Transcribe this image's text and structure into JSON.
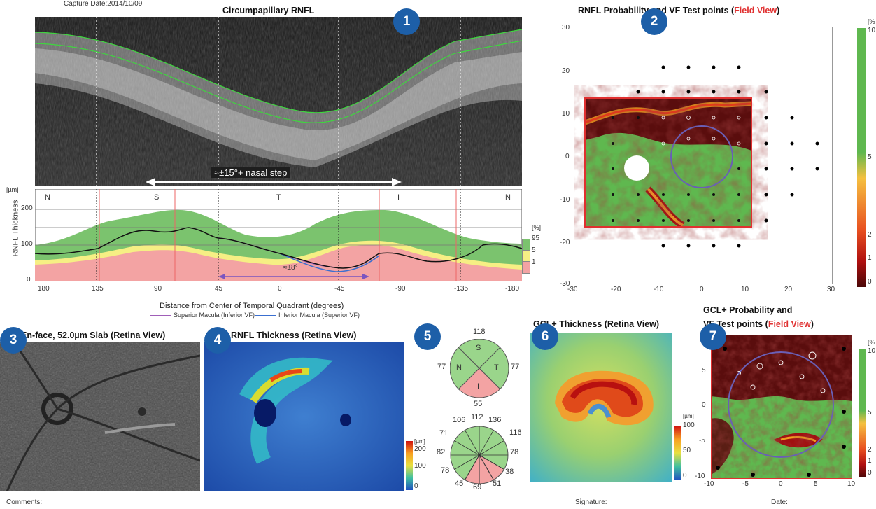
{
  "header": {
    "capture_date": "Capture Date:2014/10/09"
  },
  "panel1": {
    "title": "Circumpapillary RNFL",
    "arrow_label": "≈±15°+ nasal step",
    "y_unit": "[µm]",
    "y_label": "RNFL Thickness",
    "y_ticks": [
      "200",
      "100",
      "0"
    ],
    "quadrants": [
      "N",
      "S",
      "T",
      "I",
      "N"
    ],
    "x_ticks": [
      "180",
      "135",
      "90",
      "45",
      "0",
      "-45",
      "-90",
      "-135",
      "-180"
    ],
    "x_label": "Distance from Center of Temporal Quadrant (degrees)",
    "legend_pct_unit": "[%]",
    "legend_pct": [
      "95",
      "5",
      "1"
    ],
    "inner_label": "≈±8°",
    "legend_sup": "Superior Macula (Inferior VF)",
    "legend_inf": "Inferior Macula (Superior VF)"
  },
  "panel2": {
    "title_a": "RNFL Probability and VF Test points (",
    "title_b": "Field View",
    "title_c": ")",
    "y_ticks": [
      "30",
      "20",
      "10",
      "0",
      "-10",
      "-20",
      "-30"
    ],
    "x_ticks": [
      "-30",
      "-20",
      "-10",
      "0",
      "10",
      "20",
      "30"
    ],
    "scale_unit": "[%",
    "scale_ticks": [
      "10",
      "5",
      "2",
      "1",
      "0"
    ]
  },
  "panel3": {
    "title": "En-face, 52.0µm Slab (Retina View)"
  },
  "panel4": {
    "title": "RNFL Thickness (Retina View)",
    "scale_unit": "[µm]",
    "scale_ticks": [
      "200",
      "100",
      "0"
    ]
  },
  "panel5": {
    "quad": {
      "S": "118",
      "N": "77",
      "T": "77",
      "I": "55"
    },
    "quad_letters": {
      "S": "S",
      "N": "N",
      "T": "T",
      "I": "I"
    },
    "clock": [
      "106",
      "112",
      "136",
      "116",
      "78",
      "38",
      "51",
      "69",
      "45",
      "78",
      "82",
      "71"
    ]
  },
  "panel6": {
    "title": "GCL+ Thickness (Retina View)",
    "scale_unit": "[µm]",
    "scale_ticks": [
      "100",
      "50",
      "0"
    ]
  },
  "panel7": {
    "title_line1": "GCL+ Probability and",
    "title_a": "VF Test points (",
    "title_b": "Field View",
    "title_c": ")",
    "y_ticks": [
      "5",
      "0",
      "-5",
      "-10"
    ],
    "x_ticks": [
      "-10",
      "-5",
      "0",
      "5",
      "10"
    ],
    "scale_unit": "[%",
    "scale_ticks": [
      "10",
      "5",
      "2",
      "1",
      "0"
    ]
  },
  "badges": [
    "1",
    "2",
    "3",
    "4",
    "5",
    "6",
    "7"
  ],
  "footer": {
    "comments": "Comments:",
    "signature": "Signature:",
    "date": "Date:"
  },
  "colors": {
    "badge": "#1d5fa8",
    "field_view": "#e03030",
    "normal_green": "#78c06a",
    "borderline_yellow": "#f6ef84",
    "abnormal_pink": "#f3a3a3",
    "prob_dark": "#5a0d0d"
  }
}
